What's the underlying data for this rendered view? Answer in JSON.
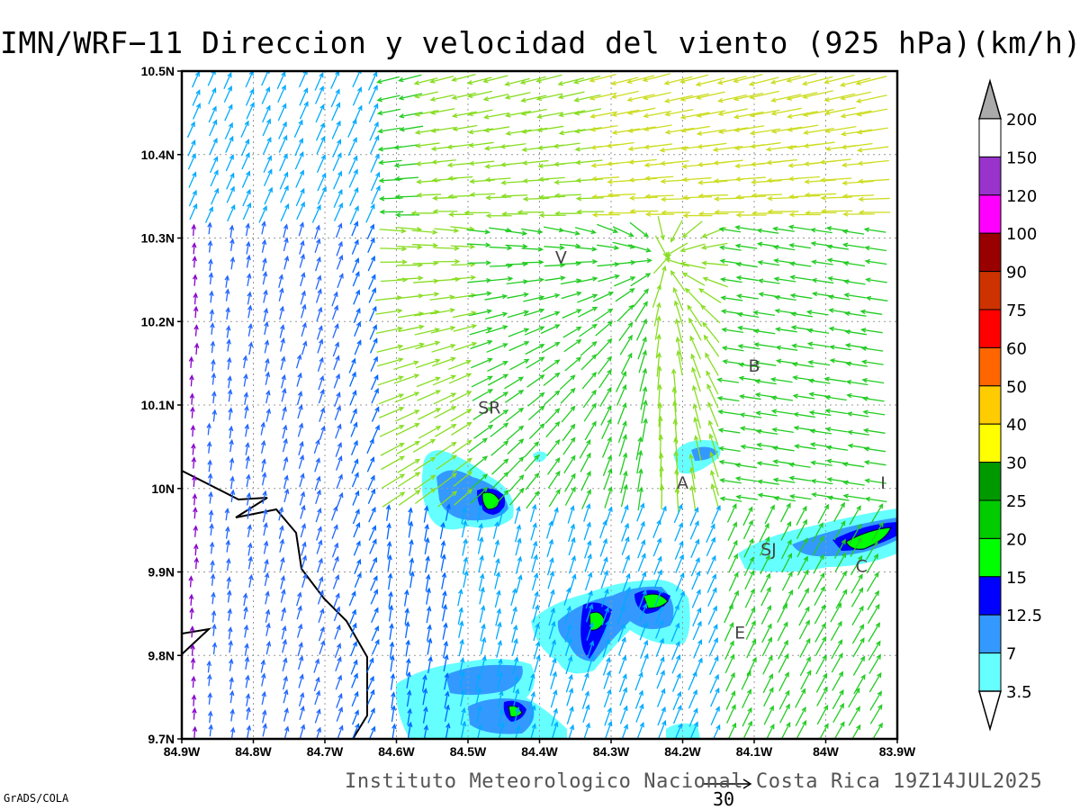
{
  "title": "IMN/WRF−11 Direccion y velocidad del viento (925 hPa)(km/h)",
  "footer": "Instituto Meteorologico Nacional Costa Rica  19Z14JUL2025",
  "credit": "GrADS/COLA",
  "reference_vector": {
    "label": "30",
    "speed_kmh": 30
  },
  "axes": {
    "lon_labels": [
      "84.9W",
      "84.8W",
      "84.7W",
      "84.6W",
      "84.5W",
      "84.4W",
      "84.3W",
      "84.2W",
      "84.1W",
      "84W",
      "83.9W"
    ],
    "lat_labels": [
      "10.5N",
      "10.4N",
      "10.3N",
      "10.2N",
      "10.1N",
      "10N",
      "9.9N",
      "9.8N",
      "9.7N"
    ],
    "lon_range": [
      -84.9,
      -83.9
    ],
    "lat_range": [
      9.7,
      10.5
    ]
  },
  "colorbar": {
    "levels": [
      "200",
      "150",
      "120",
      "100",
      "90",
      "75",
      "60",
      "50",
      "40",
      "30",
      "25",
      "20",
      "15",
      "12.5",
      "7",
      "3.5"
    ],
    "colors": [
      "#ffffff",
      "#9933cc",
      "#ff00ff",
      "#990000",
      "#cc3300",
      "#ff0000",
      "#ff6600",
      "#ffcc00",
      "#ffff00",
      "#009900",
      "#00cc00",
      "#00ff00",
      "#0000ff",
      "#3399ff",
      "#66ffff"
    ]
  },
  "cities": [
    {
      "label": "V",
      "lon": -84.37,
      "lat": 10.27
    },
    {
      "label": "SR",
      "lon": -84.47,
      "lat": 10.09
    },
    {
      "label": "B",
      "lon": -84.1,
      "lat": 10.14
    },
    {
      "label": "A",
      "lon": -84.2,
      "lat": 10.0
    },
    {
      "label": "I",
      "lon": -83.92,
      "lat": 10.0
    },
    {
      "label": "SJ",
      "lon": -84.08,
      "lat": 9.92
    },
    {
      "label": "C",
      "lon": -83.95,
      "lat": 9.9
    },
    {
      "label": "E",
      "lon": -84.12,
      "lat": 9.82
    }
  ]
}
